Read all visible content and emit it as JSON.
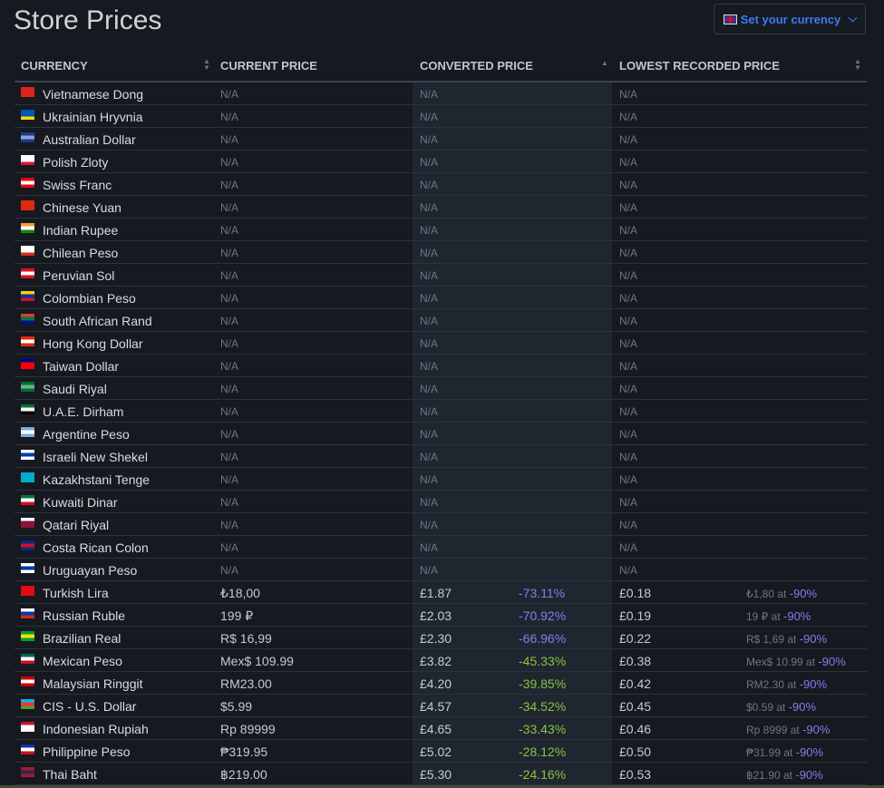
{
  "title": "Store Prices",
  "currency_button": {
    "label": "Set your currency",
    "icon": "uk-flag-icon"
  },
  "columns": [
    "CURRENCY",
    "CURRENT PRICE",
    "CONVERTED PRICE",
    "LOWEST RECORDED PRICE"
  ],
  "colors": {
    "blue_pct": "#7f7ff0",
    "green_pct": "#8ac43f",
    "link": "#3c7cf4"
  },
  "rows": [
    {
      "currency": "Vietnamese Dong",
      "flag": [
        "#da251d",
        "#da251d",
        "#da251d"
      ],
      "current": "N/A",
      "converted": "N/A",
      "lowest": "N/A"
    },
    {
      "currency": "Ukrainian Hryvnia",
      "flag": [
        "#0057b7",
        "#0057b7",
        "#ffd700"
      ],
      "current": "N/A",
      "converted": "N/A",
      "lowest": "N/A"
    },
    {
      "currency": "Australian Dollar",
      "flag": [
        "#1e3a8a",
        "#8fa0d0",
        "#1e3a8a"
      ],
      "current": "N/A",
      "converted": "N/A",
      "lowest": "N/A"
    },
    {
      "currency": "Polish Zloty",
      "flag": [
        "#ffffff",
        "#ffffff",
        "#dc143c"
      ],
      "current": "N/A",
      "converted": "N/A",
      "lowest": "N/A"
    },
    {
      "currency": "Swiss Franc",
      "flag": [
        "#e30613",
        "#ffffff",
        "#e30613"
      ],
      "current": "N/A",
      "converted": "N/A",
      "lowest": "N/A"
    },
    {
      "currency": "Chinese Yuan",
      "flag": [
        "#de2910",
        "#de2910",
        "#de2910"
      ],
      "current": "N/A",
      "converted": "N/A",
      "lowest": "N/A"
    },
    {
      "currency": "Indian Rupee",
      "flag": [
        "#ff9933",
        "#ffffff",
        "#138808"
      ],
      "current": "N/A",
      "converted": "N/A",
      "lowest": "N/A"
    },
    {
      "currency": "Chilean Peso",
      "flag": [
        "#ffffff",
        "#ffffff",
        "#d52b1e"
      ],
      "current": "N/A",
      "converted": "N/A",
      "lowest": "N/A"
    },
    {
      "currency": "Peruvian Sol",
      "flag": [
        "#d91023",
        "#ffffff",
        "#d91023"
      ],
      "current": "N/A",
      "converted": "N/A",
      "lowest": "N/A"
    },
    {
      "currency": "Colombian Peso",
      "flag": [
        "#fcd116",
        "#003893",
        "#ce1126"
      ],
      "current": "N/A",
      "converted": "N/A",
      "lowest": "N/A"
    },
    {
      "currency": "South African Rand",
      "flag": [
        "#e03c31",
        "#007749",
        "#001489"
      ],
      "current": "N/A",
      "converted": "N/A",
      "lowest": "N/A"
    },
    {
      "currency": "Hong Kong Dollar",
      "flag": [
        "#de2910",
        "#ffffff",
        "#de2910"
      ],
      "current": "N/A",
      "converted": "N/A",
      "lowest": "N/A"
    },
    {
      "currency": "Taiwan Dollar",
      "flag": [
        "#000095",
        "#fe0000",
        "#fe0000"
      ],
      "current": "N/A",
      "converted": "N/A",
      "lowest": "N/A"
    },
    {
      "currency": "Saudi Riyal",
      "flag": [
        "#006c35",
        "#6fae8a",
        "#006c35"
      ],
      "current": "N/A",
      "converted": "N/A",
      "lowest": "N/A"
    },
    {
      "currency": "U.A.E. Dirham",
      "flag": [
        "#00732f",
        "#ffffff",
        "#000000"
      ],
      "current": "N/A",
      "converted": "N/A",
      "lowest": "N/A"
    },
    {
      "currency": "Argentine Peso",
      "flag": [
        "#74acdf",
        "#ffffff",
        "#74acdf"
      ],
      "current": "N/A",
      "converted": "N/A",
      "lowest": "N/A"
    },
    {
      "currency": "Israeli New Shekel",
      "flag": [
        "#ffffff",
        "#0038b8",
        "#ffffff"
      ],
      "current": "N/A",
      "converted": "N/A",
      "lowest": "N/A"
    },
    {
      "currency": "Kazakhstani Tenge",
      "flag": [
        "#00afca",
        "#00afca",
        "#00afca"
      ],
      "current": "N/A",
      "converted": "N/A",
      "lowest": "N/A"
    },
    {
      "currency": "Kuwaiti Dinar",
      "flag": [
        "#007a3d",
        "#ffffff",
        "#ce1126"
      ],
      "current": "N/A",
      "converted": "N/A",
      "lowest": "N/A"
    },
    {
      "currency": "Qatari Riyal",
      "flag": [
        "#ffffff",
        "#8a1538",
        "#8a1538"
      ],
      "current": "N/A",
      "converted": "N/A",
      "lowest": "N/A"
    },
    {
      "currency": "Costa Rican Colon",
      "flag": [
        "#002b7f",
        "#ce1126",
        "#002b7f"
      ],
      "current": "N/A",
      "converted": "N/A",
      "lowest": "N/A"
    },
    {
      "currency": "Uruguayan Peso",
      "flag": [
        "#ffffff",
        "#0038a8",
        "#ffffff"
      ],
      "current": "N/A",
      "converted": "N/A",
      "lowest": "N/A"
    },
    {
      "currency": "Turkish Lira",
      "flag": [
        "#e30a17",
        "#e30a17",
        "#e30a17"
      ],
      "current": "₺18,00",
      "converted": "£1.87",
      "pct": "-73.11%",
      "pct_color": "blue",
      "lowest": "£0.18",
      "lowest_orig": "₺1,80",
      "lowest_pct": "-90%"
    },
    {
      "currency": "Russian Ruble",
      "flag": [
        "#ffffff",
        "#0039a6",
        "#d52b1e"
      ],
      "current": "199 ₽",
      "converted": "£2.03",
      "pct": "-70.92%",
      "pct_color": "blue",
      "lowest": "£0.19",
      "lowest_orig": "19 ₽",
      "lowest_pct": "-90%"
    },
    {
      "currency": "Brazilian Real",
      "flag": [
        "#009c3b",
        "#ffdf00",
        "#009c3b"
      ],
      "current": "R$ 16,99",
      "converted": "£2.30",
      "pct": "-66.96%",
      "pct_color": "blue",
      "lowest": "£0.22",
      "lowest_orig": "R$ 1,69",
      "lowest_pct": "-90%"
    },
    {
      "currency": "Mexican Peso",
      "flag": [
        "#006847",
        "#ffffff",
        "#ce1126"
      ],
      "current": "Mex$ 109.99",
      "converted": "£3.82",
      "pct": "-45.33%",
      "pct_color": "green",
      "lowest": "£0.38",
      "lowest_orig": "Mex$ 10.99",
      "lowest_pct": "-90%"
    },
    {
      "currency": "Malaysian Ringgit",
      "flag": [
        "#cc0001",
        "#ffffff",
        "#cc0001"
      ],
      "current": "RM23.00",
      "converted": "£4.20",
      "pct": "-39.85%",
      "pct_color": "green",
      "lowest": "£0.42",
      "lowest_orig": "RM2.30",
      "lowest_pct": "-90%"
    },
    {
      "currency": "CIS - U.S. Dollar",
      "flag": [
        "#00b5e2",
        "#ef3340",
        "#509e2f"
      ],
      "current": "$5.99",
      "converted": "£4.57",
      "pct": "-34.52%",
      "pct_color": "green",
      "lowest": "£0.45",
      "lowest_orig": "$0.59",
      "lowest_pct": "-90%"
    },
    {
      "currency": "Indonesian Rupiah",
      "flag": [
        "#ce1126",
        "#ffffff",
        "#ffffff"
      ],
      "current": "Rp 89999",
      "converted": "£4.65",
      "pct": "-33.43%",
      "pct_color": "green",
      "lowest": "£0.46",
      "lowest_orig": "Rp 8999",
      "lowest_pct": "-90%"
    },
    {
      "currency": "Philippine Peso",
      "flag": [
        "#0038a8",
        "#ffffff",
        "#ce1126"
      ],
      "current": "₱319.95",
      "converted": "£5.02",
      "pct": "-28.12%",
      "pct_color": "green",
      "lowest": "£0.50",
      "lowest_orig": "₱31.99",
      "lowest_pct": "-90%"
    },
    {
      "currency": "Thai Baht",
      "flag": [
        "#a51931",
        "#2d2a4a",
        "#a51931"
      ],
      "current": "฿219.00",
      "converted": "£5.30",
      "pct": "-24.16%",
      "pct_color": "green",
      "lowest": "£0.53",
      "lowest_orig": "฿21.90",
      "lowest_pct": "-90%"
    }
  ]
}
